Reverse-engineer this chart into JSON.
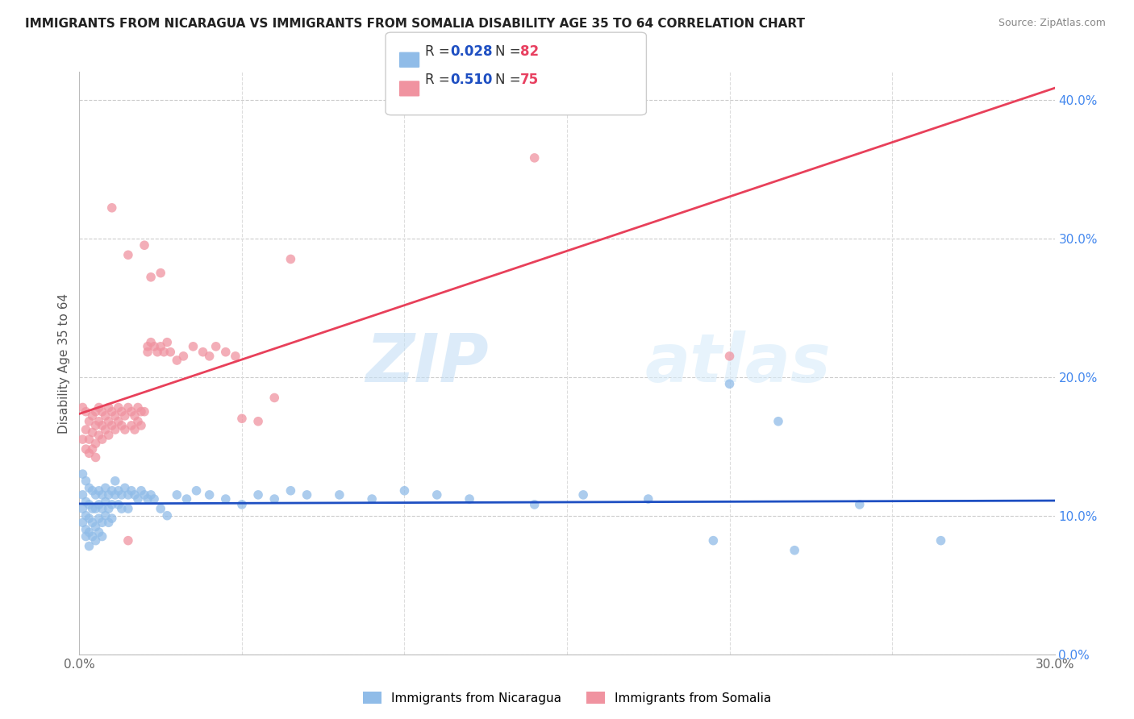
{
  "title": "IMMIGRANTS FROM NICARAGUA VS IMMIGRANTS FROM SOMALIA DISABILITY AGE 35 TO 64 CORRELATION CHART",
  "source": "Source: ZipAtlas.com",
  "ylabel_label": "Disability Age 35 to 64",
  "watermark_zip": "ZIP",
  "watermark_atlas": "atlas",
  "xmin": 0.0,
  "xmax": 0.3,
  "ymin": 0.0,
  "ymax": 0.42,
  "nicaragua_color": "#90bce8",
  "somalia_color": "#f093a0",
  "nicaragua_line_color": "#1e4fc2",
  "somalia_line_color": "#e8405a",
  "nicaragua_R": 0.028,
  "nicaragua_N": 82,
  "somalia_R": 0.51,
  "somalia_N": 75,
  "legend_R1_color": "#1e4fc2",
  "legend_N1_color": "#e84060",
  "legend_R2_color": "#1e4fc2",
  "legend_N2_color": "#e84060",
  "nicaragua_points": [
    [
      0.001,
      0.13
    ],
    [
      0.001,
      0.115
    ],
    [
      0.001,
      0.105
    ],
    [
      0.001,
      0.095
    ],
    [
      0.002,
      0.125
    ],
    [
      0.002,
      0.11
    ],
    [
      0.002,
      0.1
    ],
    [
      0.002,
      0.09
    ],
    [
      0.002,
      0.085
    ],
    [
      0.003,
      0.12
    ],
    [
      0.003,
      0.108
    ],
    [
      0.003,
      0.098
    ],
    [
      0.003,
      0.088
    ],
    [
      0.003,
      0.078
    ],
    [
      0.004,
      0.118
    ],
    [
      0.004,
      0.105
    ],
    [
      0.004,
      0.095
    ],
    [
      0.004,
      0.085
    ],
    [
      0.005,
      0.115
    ],
    [
      0.005,
      0.105
    ],
    [
      0.005,
      0.092
    ],
    [
      0.005,
      0.082
    ],
    [
      0.006,
      0.118
    ],
    [
      0.006,
      0.108
    ],
    [
      0.006,
      0.098
    ],
    [
      0.006,
      0.088
    ],
    [
      0.007,
      0.115
    ],
    [
      0.007,
      0.105
    ],
    [
      0.007,
      0.095
    ],
    [
      0.007,
      0.085
    ],
    [
      0.008,
      0.12
    ],
    [
      0.008,
      0.11
    ],
    [
      0.008,
      0.1
    ],
    [
      0.009,
      0.115
    ],
    [
      0.009,
      0.105
    ],
    [
      0.009,
      0.095
    ],
    [
      0.01,
      0.118
    ],
    [
      0.01,
      0.108
    ],
    [
      0.01,
      0.098
    ],
    [
      0.011,
      0.125
    ],
    [
      0.011,
      0.115
    ],
    [
      0.012,
      0.118
    ],
    [
      0.012,
      0.108
    ],
    [
      0.013,
      0.115
    ],
    [
      0.013,
      0.105
    ],
    [
      0.014,
      0.12
    ],
    [
      0.015,
      0.115
    ],
    [
      0.015,
      0.105
    ],
    [
      0.016,
      0.118
    ],
    [
      0.017,
      0.115
    ],
    [
      0.018,
      0.112
    ],
    [
      0.019,
      0.118
    ],
    [
      0.02,
      0.115
    ],
    [
      0.021,
      0.112
    ],
    [
      0.022,
      0.115
    ],
    [
      0.023,
      0.112
    ],
    [
      0.025,
      0.105
    ],
    [
      0.027,
      0.1
    ],
    [
      0.03,
      0.115
    ],
    [
      0.033,
      0.112
    ],
    [
      0.036,
      0.118
    ],
    [
      0.04,
      0.115
    ],
    [
      0.045,
      0.112
    ],
    [
      0.05,
      0.108
    ],
    [
      0.055,
      0.115
    ],
    [
      0.06,
      0.112
    ],
    [
      0.065,
      0.118
    ],
    [
      0.07,
      0.115
    ],
    [
      0.08,
      0.115
    ],
    [
      0.09,
      0.112
    ],
    [
      0.1,
      0.118
    ],
    [
      0.11,
      0.115
    ],
    [
      0.12,
      0.112
    ],
    [
      0.14,
      0.108
    ],
    [
      0.155,
      0.115
    ],
    [
      0.175,
      0.112
    ],
    [
      0.2,
      0.195
    ],
    [
      0.215,
      0.168
    ],
    [
      0.24,
      0.108
    ],
    [
      0.265,
      0.082
    ],
    [
      0.22,
      0.075
    ],
    [
      0.195,
      0.082
    ]
  ],
  "somalia_points": [
    [
      0.001,
      0.155
    ],
    [
      0.001,
      0.178
    ],
    [
      0.002,
      0.162
    ],
    [
      0.002,
      0.148
    ],
    [
      0.002,
      0.175
    ],
    [
      0.003,
      0.168
    ],
    [
      0.003,
      0.155
    ],
    [
      0.003,
      0.145
    ],
    [
      0.004,
      0.172
    ],
    [
      0.004,
      0.16
    ],
    [
      0.004,
      0.148
    ],
    [
      0.005,
      0.175
    ],
    [
      0.005,
      0.165
    ],
    [
      0.005,
      0.152
    ],
    [
      0.005,
      0.142
    ],
    [
      0.006,
      0.178
    ],
    [
      0.006,
      0.168
    ],
    [
      0.006,
      0.158
    ],
    [
      0.007,
      0.175
    ],
    [
      0.007,
      0.165
    ],
    [
      0.007,
      0.155
    ],
    [
      0.008,
      0.172
    ],
    [
      0.008,
      0.162
    ],
    [
      0.009,
      0.178
    ],
    [
      0.009,
      0.168
    ],
    [
      0.009,
      0.158
    ],
    [
      0.01,
      0.175
    ],
    [
      0.01,
      0.165
    ],
    [
      0.01,
      0.322
    ],
    [
      0.011,
      0.172
    ],
    [
      0.011,
      0.162
    ],
    [
      0.012,
      0.178
    ],
    [
      0.012,
      0.168
    ],
    [
      0.013,
      0.175
    ],
    [
      0.013,
      0.165
    ],
    [
      0.014,
      0.172
    ],
    [
      0.014,
      0.162
    ],
    [
      0.015,
      0.178
    ],
    [
      0.015,
      0.288
    ],
    [
      0.016,
      0.175
    ],
    [
      0.016,
      0.165
    ],
    [
      0.017,
      0.172
    ],
    [
      0.017,
      0.162
    ],
    [
      0.018,
      0.178
    ],
    [
      0.018,
      0.168
    ],
    [
      0.019,
      0.175
    ],
    [
      0.019,
      0.165
    ],
    [
      0.02,
      0.295
    ],
    [
      0.02,
      0.175
    ],
    [
      0.021,
      0.222
    ],
    [
      0.021,
      0.218
    ],
    [
      0.022,
      0.225
    ],
    [
      0.022,
      0.272
    ],
    [
      0.023,
      0.222
    ],
    [
      0.024,
      0.218
    ],
    [
      0.025,
      0.222
    ],
    [
      0.025,
      0.275
    ],
    [
      0.026,
      0.218
    ],
    [
      0.027,
      0.225
    ],
    [
      0.028,
      0.218
    ],
    [
      0.03,
      0.212
    ],
    [
      0.032,
      0.215
    ],
    [
      0.035,
      0.222
    ],
    [
      0.038,
      0.218
    ],
    [
      0.04,
      0.215
    ],
    [
      0.042,
      0.222
    ],
    [
      0.045,
      0.218
    ],
    [
      0.048,
      0.215
    ],
    [
      0.05,
      0.17
    ],
    [
      0.055,
      0.168
    ],
    [
      0.06,
      0.185
    ],
    [
      0.065,
      0.285
    ],
    [
      0.14,
      0.358
    ],
    [
      0.2,
      0.215
    ],
    [
      0.015,
      0.082
    ]
  ]
}
